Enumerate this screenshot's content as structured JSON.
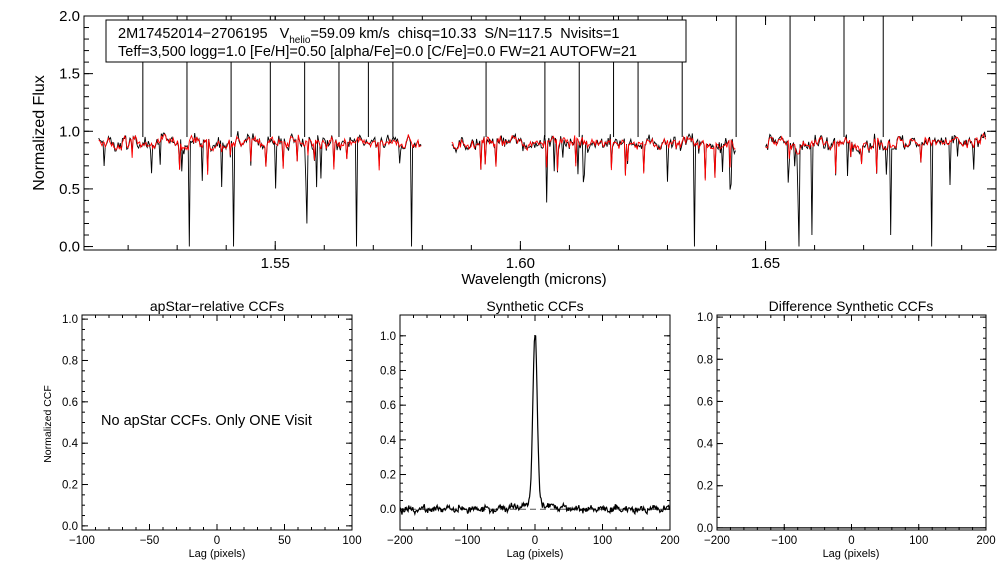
{
  "chart_data": [
    {
      "type": "line",
      "name": "spectrum",
      "xlabel": "Wavelength (microns)",
      "ylabel": "Normalized Flux",
      "xlim": [
        1.511,
        1.697
      ],
      "ylim": [
        -0.03,
        2.0
      ],
      "xticks": [
        1.55,
        1.6,
        1.65
      ],
      "xtick_labels": [
        "1.55",
        "1.60",
        "1.65"
      ],
      "yticks": [
        0.0,
        0.5,
        1.0,
        1.5,
        2.0
      ],
      "ytick_labels": [
        "0.0",
        "0.5",
        "1.0",
        "1.5",
        "2.0"
      ],
      "chips": [
        [
          1.514,
          1.58
        ],
        [
          1.586,
          1.644
        ],
        [
          1.65,
          1.695
        ]
      ],
      "series": [
        {
          "name": "observed",
          "color": "#000000"
        },
        {
          "name": "model",
          "color": "#ff0000"
        }
      ],
      "spikes": [
        1.523,
        1.532,
        1.541,
        1.549,
        1.556,
        1.563,
        1.569,
        1.574,
        1.593,
        1.605,
        1.612,
        1.619,
        1.624,
        1.633,
        1.644,
        1.655,
        1.666,
        1.674
      ],
      "dips": [
        [
          1.5325,
          0.0
        ],
        [
          1.5415,
          0.0
        ],
        [
          1.5565,
          0.2
        ],
        [
          1.5665,
          0.0
        ],
        [
          1.5778,
          0.0
        ],
        [
          1.6355,
          0.0
        ],
        [
          1.6568,
          0.0
        ],
        [
          1.6595,
          0.1
        ],
        [
          1.6755,
          0.1
        ],
        [
          1.6838,
          0.0
        ]
      ],
      "info_box": {
        "star": "2M17452014−2706195",
        "v_label": "V",
        "v_sub": "helio",
        "v_value": "=59.09 km/s",
        "chisq": "chisq=10.33",
        "sn": "S/N=117.5",
        "nvisits": "Nvisits=1",
        "line2": "Teff=3,500 logg=1.0 [Fe/H]=0.50 [alpha/Fe]=0.0 [C/Fe]=0.0 FW=21 AUTOFW=21"
      }
    },
    {
      "type": "line",
      "name": "apstar-ccf",
      "title": "apStar−relative CCFs",
      "xlabel": "Lag (pixels)",
      "ylabel": "Normalized CCF",
      "xlim": [
        -100,
        100
      ],
      "ylim": [
        -0.02,
        1.02
      ],
      "xticks": [
        -100,
        -50,
        0,
        50,
        100
      ],
      "xtick_labels": [
        "−100",
        "−50",
        "0",
        "50",
        "100"
      ],
      "yticks": [
        0.0,
        0.2,
        0.4,
        0.6,
        0.8,
        1.0
      ],
      "ytick_labels": [
        "0.0",
        "0.2",
        "0.4",
        "0.6",
        "0.8",
        "1.0"
      ],
      "message": "No apStar CCFs.  Only ONE Visit"
    },
    {
      "type": "line",
      "name": "synthetic-ccf",
      "title": "Synthetic CCFs",
      "xlabel": "Lag (pixels)",
      "xlim": [
        -200,
        200
      ],
      "ylim": [
        -0.12,
        1.12
      ],
      "xticks": [
        -200,
        -100,
        0,
        100,
        200
      ],
      "xtick_labels": [
        "−200",
        "−100",
        "0",
        "100",
        "200"
      ],
      "yticks": [
        0.0,
        0.2,
        0.4,
        0.6,
        0.8,
        1.0
      ],
      "ytick_labels": [
        "0.0",
        "0.2",
        "0.4",
        "0.6",
        "0.8",
        "1.0"
      ],
      "peak_lag": 0,
      "peak_value": 1.0,
      "baseline": 0.0,
      "baseline_style": "dashed"
    },
    {
      "type": "line",
      "name": "difference-ccf",
      "title": "Difference Synthetic CCFs",
      "xlabel": "Lag (pixels)",
      "xlim": [
        -200,
        200
      ],
      "ylim": [
        -0.01,
        1.01
      ],
      "xticks": [
        -200,
        -100,
        0,
        100,
        200
      ],
      "xtick_labels": [
        "−200",
        "−100",
        "0",
        "100",
        "200"
      ],
      "yticks": [
        0.0,
        0.2,
        0.4,
        0.6,
        0.8,
        1.0
      ],
      "ytick_labels": [
        "0.0",
        "0.2",
        "0.4",
        "0.6",
        "0.8",
        "1.0"
      ],
      "values": [
        [
          -200,
          0.0
        ],
        [
          200,
          0.0
        ]
      ]
    }
  ]
}
